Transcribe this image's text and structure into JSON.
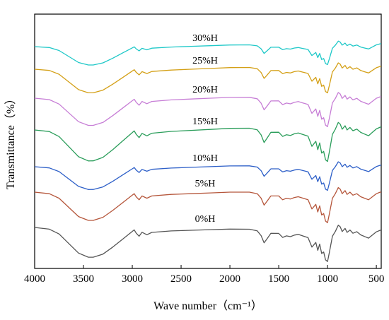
{
  "chart_data": {
    "type": "line",
    "title": "",
    "xlabel": "Wave number（cm⁻¹）",
    "ylabel": "Transmittance（%）",
    "xlim": [
      4000,
      450
    ],
    "x_reversed": true,
    "x_ticks": [
      4000,
      3500,
      3000,
      2500,
      2000,
      1500,
      1000,
      500
    ],
    "y_ticks_shown": false,
    "grid": false,
    "legend": "none",
    "label_position": "above each curve",
    "series": [
      {
        "name": "30%H",
        "color": "#1ec8c8"
      },
      {
        "name": "25%H",
        "color": "#d4a017"
      },
      {
        "name": "20%H",
        "color": "#c77ed6"
      },
      {
        "name": "15%H",
        "color": "#2a9d5a"
      },
      {
        "name": "10%H",
        "color": "#2d5fc8"
      },
      {
        "name": "5%H",
        "color": "#b5563b"
      },
      {
        "name": "0%H",
        "color": "#555555"
      }
    ]
  }
}
